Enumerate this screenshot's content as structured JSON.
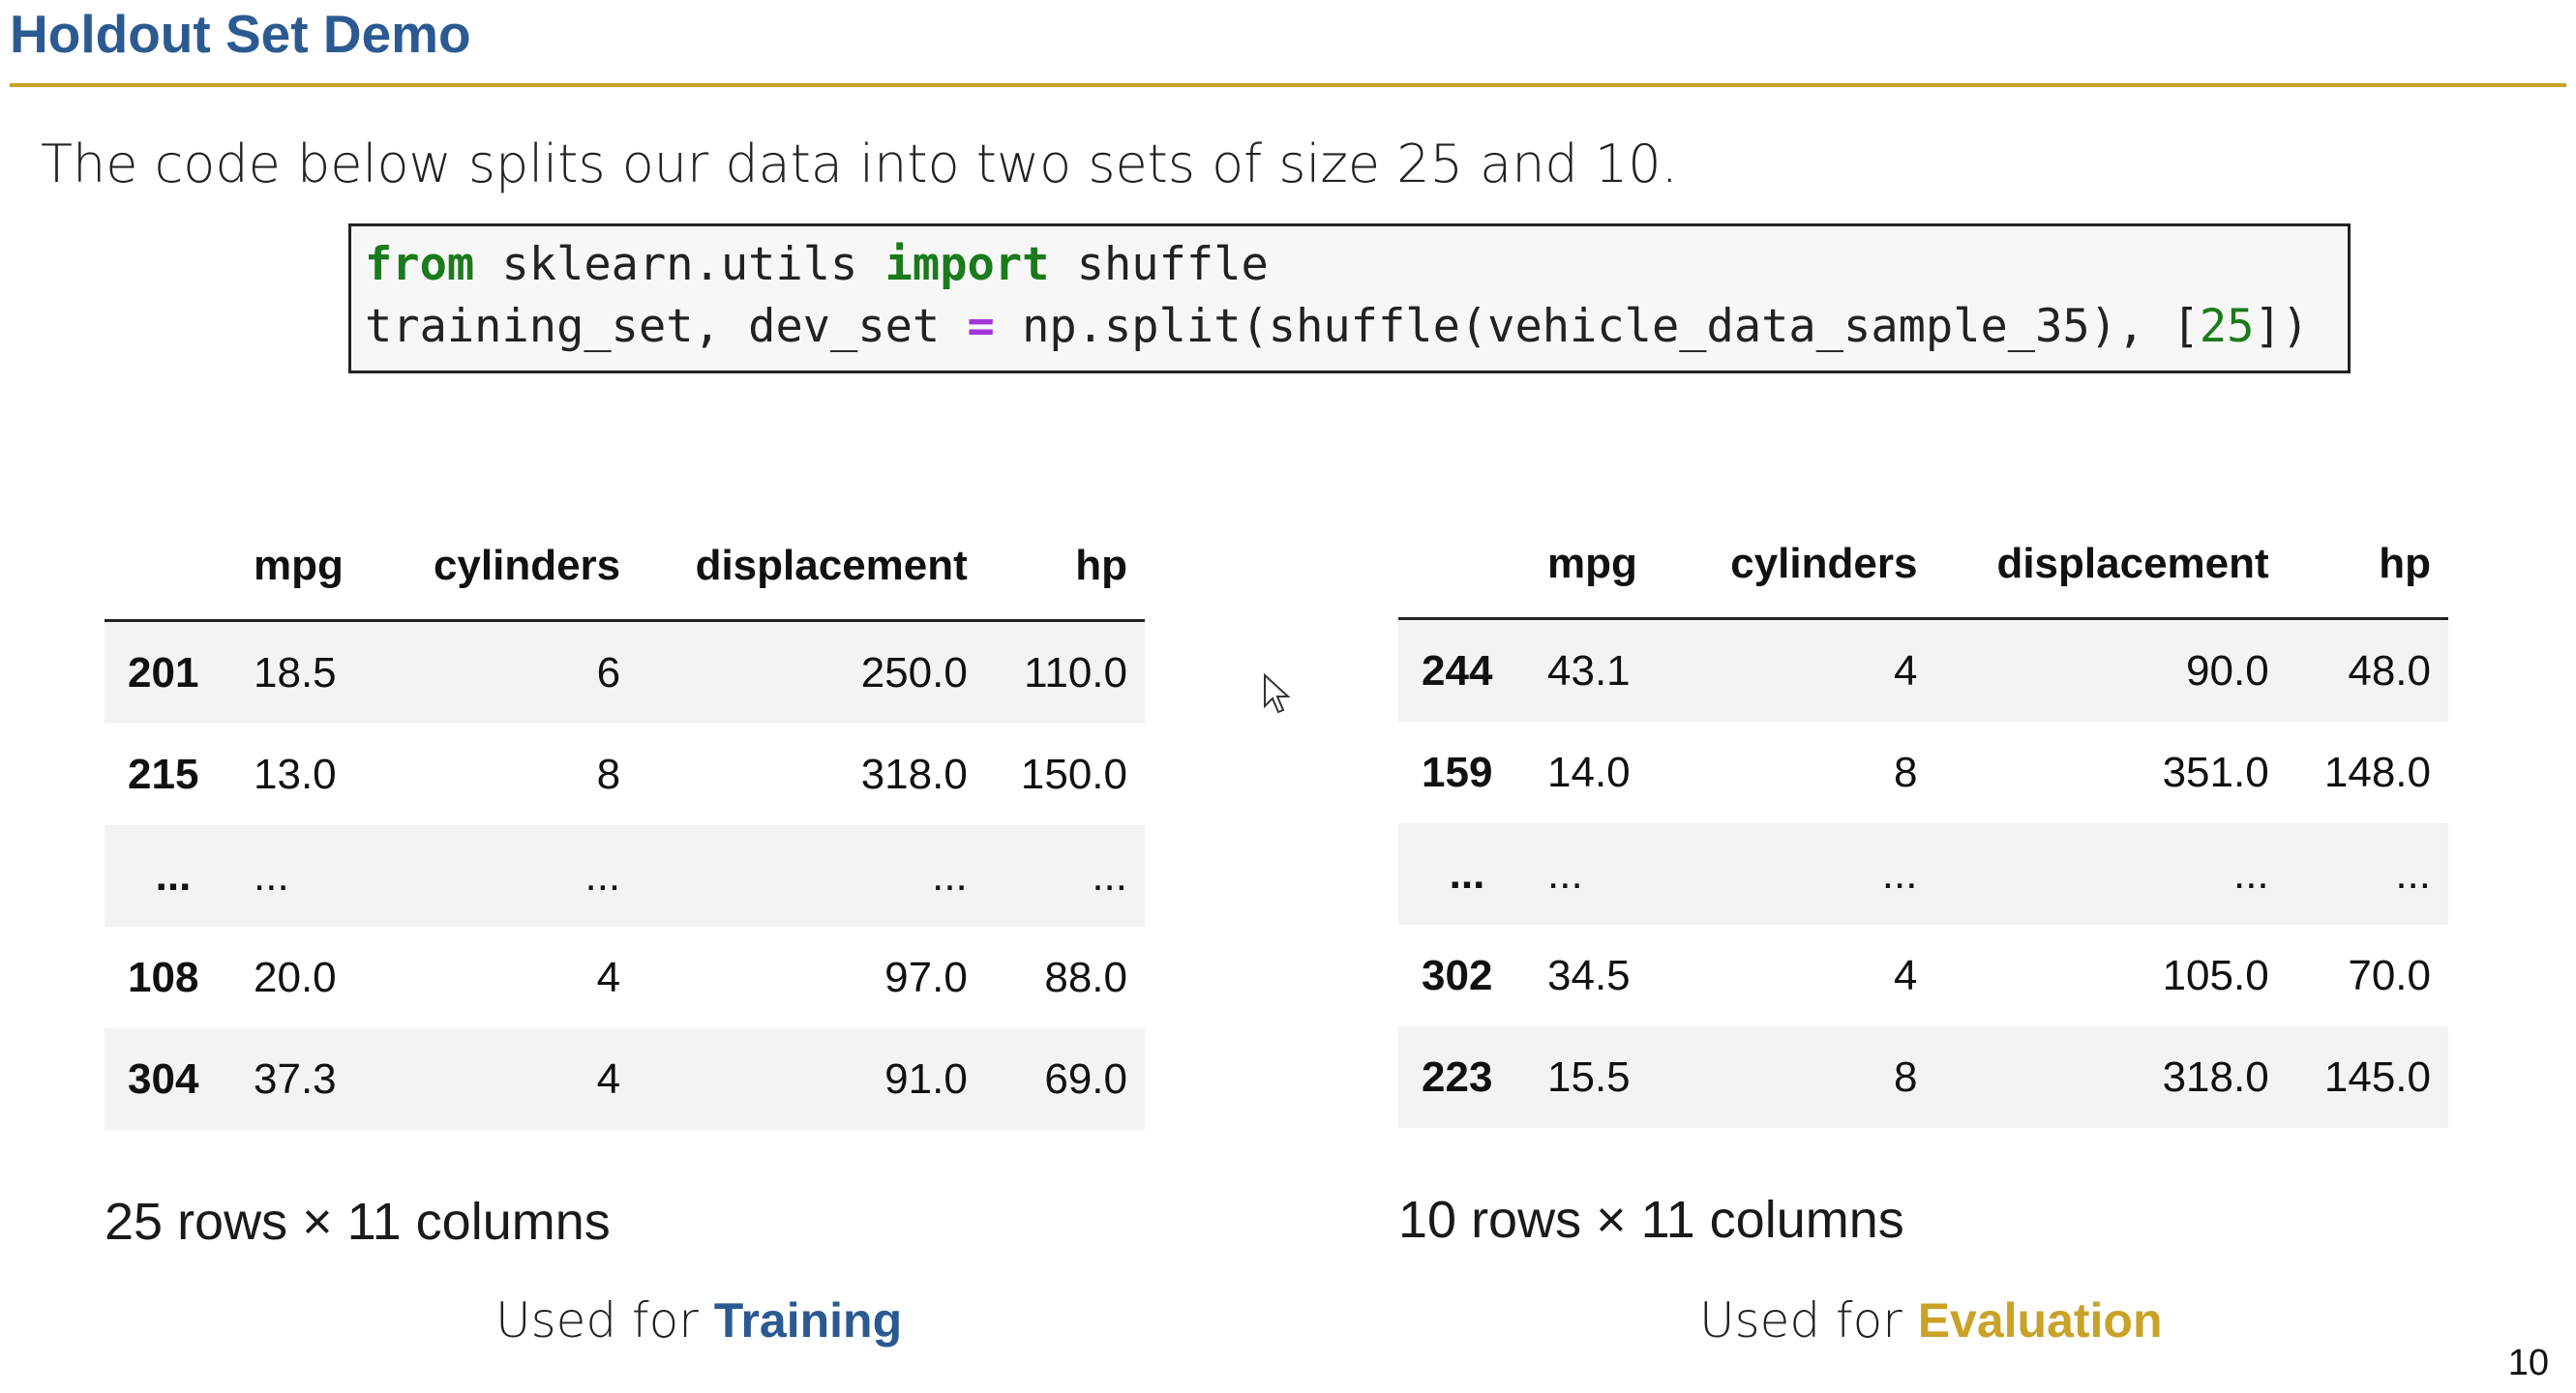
{
  "slide": {
    "title": "Holdout Set Demo",
    "intro": "The code below splits our data into two sets of size 25 and 10.",
    "page_number": "10",
    "accent_blue": "#2b5a92",
    "accent_gold": "#c9a227"
  },
  "code": {
    "line1": {
      "kw1": "from",
      "mid": " sklearn.utils ",
      "kw2": "import",
      "end": " shuffle"
    },
    "line2": {
      "a": "training_set, dev_set ",
      "op": "=",
      "b": " np.split(shuffle(vehicle_data_sample_35), [",
      "num": "25",
      "c": "])"
    }
  },
  "left_table": {
    "columns": [
      "mpg",
      "cylinders",
      "displacement",
      "hp"
    ],
    "rows": [
      {
        "idx": "201",
        "cells": [
          "18.5",
          "6",
          "250.0",
          "110.0"
        ]
      },
      {
        "idx": "215",
        "cells": [
          "13.0",
          "8",
          "318.0",
          "150.0"
        ]
      },
      {
        "idx": "...",
        "cells": [
          "...",
          "...",
          "...",
          "..."
        ]
      },
      {
        "idx": "108",
        "cells": [
          "20.0",
          "4",
          "97.0",
          "88.0"
        ]
      },
      {
        "idx": "304",
        "cells": [
          "37.3",
          "4",
          "91.0",
          "69.0"
        ]
      }
    ],
    "shape": "25 rows × 11 columns",
    "caption_prefix": "Used for ",
    "caption_word": "Training"
  },
  "right_table": {
    "columns": [
      "mpg",
      "cylinders",
      "displacement",
      "hp"
    ],
    "rows": [
      {
        "idx": "244",
        "cells": [
          "43.1",
          "4",
          "90.0",
          "48.0"
        ]
      },
      {
        "idx": "159",
        "cells": [
          "14.0",
          "8",
          "351.0",
          "148.0"
        ]
      },
      {
        "idx": "...",
        "cells": [
          "...",
          "...",
          "...",
          "..."
        ]
      },
      {
        "idx": "302",
        "cells": [
          "34.5",
          "4",
          "105.0",
          "70.0"
        ]
      },
      {
        "idx": "223",
        "cells": [
          "15.5",
          "8",
          "318.0",
          "145.0"
        ]
      }
    ],
    "shape": "10 rows × 11 columns",
    "caption_prefix": "Used for ",
    "caption_word": "Evaluation"
  }
}
